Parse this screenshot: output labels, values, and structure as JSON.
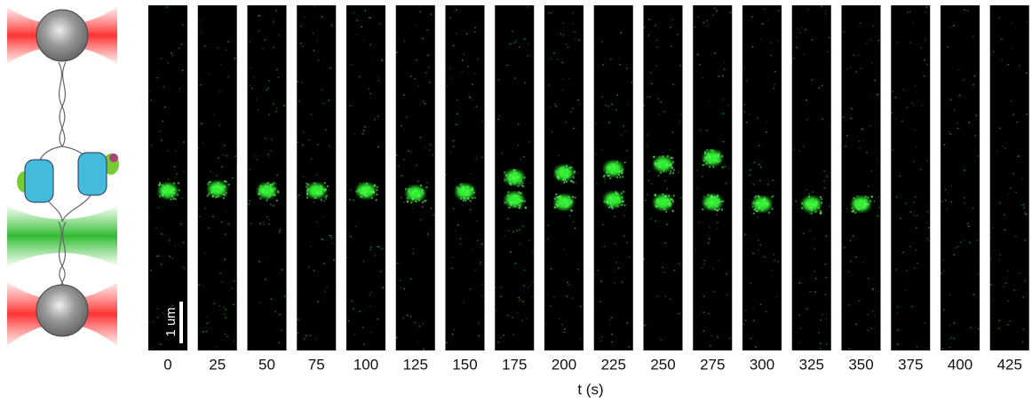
{
  "panels": {
    "times": [
      0,
      25,
      50,
      75,
      100,
      125,
      150,
      175,
      200,
      225,
      250,
      275,
      300,
      325,
      350,
      375,
      400,
      425
    ],
    "x_label": "t (s)",
    "scale_bar": "1 um"
  }
}
